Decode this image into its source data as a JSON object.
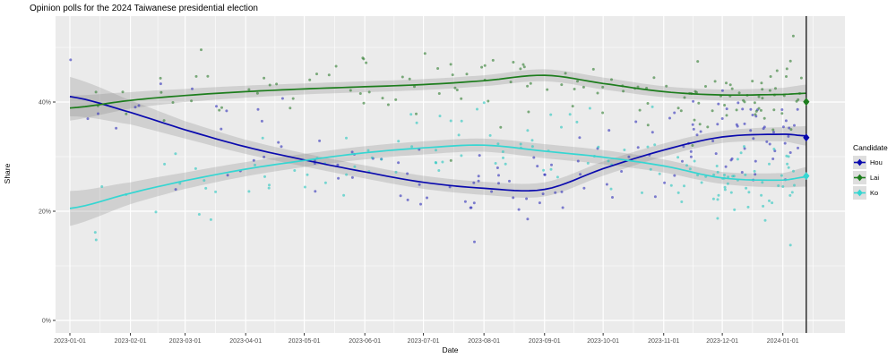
{
  "title": "Opinion polls for the 2024 Taiwanese presidential election",
  "axes": {
    "xlabel": "Date",
    "ylabel": "Share",
    "x_tick_labels": [
      "2023-01-01",
      "2023-02-01",
      "2023-03-01",
      "2023-04-01",
      "2023-05-01",
      "2023-06-01",
      "2023-07-01",
      "2023-08-01",
      "2023-09-01",
      "2023-10-01",
      "2023-11-01",
      "2023-12-01",
      "2024-01-01"
    ],
    "y_tick_labels": [
      "0%",
      "20%",
      "40%"
    ]
  },
  "legend": {
    "title": "Candidate",
    "items": [
      {
        "label": "Hou"
      },
      {
        "label": "Lai"
      },
      {
        "label": "Ko"
      }
    ]
  },
  "chart_data": {
    "type": "scatter",
    "title": "Opinion polls for the 2024 Taiwanese presidential election",
    "xlabel": "Date",
    "ylabel": "Share",
    "grid": true,
    "legend_position": "right",
    "panel_background": "#EBEBEB",
    "gridline_color": "#FFFFFF",
    "tick_color": "#333333",
    "x_tick_days": [
      0,
      31,
      59,
      90,
      120,
      151,
      181,
      212,
      243,
      273,
      304,
      334,
      365
    ],
    "x_tick_labels": [
      "2023-01-01",
      "2023-02-01",
      "2023-03-01",
      "2023-04-01",
      "2023-05-01",
      "2023-06-01",
      "2023-07-01",
      "2023-08-01",
      "2023-09-01",
      "2023-10-01",
      "2023-11-01",
      "2023-12-01",
      "2024-01-01"
    ],
    "x_day_range": [
      -7.3,
      396.8
    ],
    "ylim": [
      -2.3,
      55.7
    ],
    "y_major_ticks": [
      0,
      20,
      40
    ],
    "y_major_labels": [
      "0%",
      "20%",
      "40%"
    ],
    "y_minor_ticks": [
      10,
      30,
      50
    ],
    "election_day_line": {
      "day": 377,
      "color": "#111111"
    },
    "control_days": [
      0,
      31,
      59,
      90,
      120,
      151,
      181,
      212,
      243,
      273,
      304,
      334,
      365,
      377
    ],
    "series": [
      {
        "name": "Hou",
        "line_color": "#0A0AAE",
        "point_color": "#3535BB",
        "trend_pct": [
          41.0,
          38.1,
          34.9,
          31.8,
          29.4,
          27.2,
          25.3,
          24.2,
          24.0,
          27.8,
          31.2,
          33.6,
          34.1,
          33.8
        ],
        "ci_halfwidth_pct": [
          3.6,
          2.2,
          1.6,
          1.3,
          1.2,
          1.2,
          1.2,
          1.2,
          1.3,
          1.3,
          1.2,
          1.1,
          1.3,
          1.8
        ],
        "election_result_pct": 33.49,
        "noise_sd": 3.4
      },
      {
        "name": "Lai",
        "line_color": "#1D7D1D",
        "point_color": "#338033",
        "trend_pct": [
          38.9,
          40.3,
          41.2,
          41.9,
          42.4,
          42.8,
          43.2,
          43.9,
          44.9,
          43.4,
          41.9,
          41.3,
          41.4,
          41.6
        ],
        "ci_halfwidth_pct": [
          2.3,
          1.5,
          1.2,
          1.1,
          1.0,
          1.0,
          1.0,
          1.0,
          1.1,
          1.1,
          1.0,
          1.0,
          1.2,
          1.6
        ],
        "election_result_pct": 40.05,
        "noise_sd": 3.0
      },
      {
        "name": "Ko",
        "line_color": "#35D6D2",
        "point_color": "#2CC8C0",
        "trend_pct": [
          20.5,
          23.3,
          25.6,
          27.7,
          29.3,
          30.7,
          31.6,
          32.1,
          31.0,
          29.9,
          28.3,
          26.1,
          25.7,
          26.3
        ],
        "ci_halfwidth_pct": [
          3.2,
          2.0,
          1.5,
          1.3,
          1.2,
          1.2,
          1.2,
          1.2,
          1.3,
          1.3,
          1.2,
          1.1,
          1.3,
          1.8
        ],
        "election_result_pct": 26.46,
        "noise_sd": 3.6
      }
    ],
    "ci_band": {
      "color": "#7F7F7F",
      "opacity": 0.25
    },
    "scatter_model": {
      "seed": 7,
      "month_boundaries_days": [
        0,
        31,
        59,
        90,
        120,
        151,
        181,
        212,
        243,
        273,
        304,
        334,
        365,
        375
      ],
      "polls_per_month_per_candidate": [
        4,
        4,
        6,
        7,
        9,
        9,
        11,
        13,
        11,
        10,
        18,
        30,
        10
      ],
      "point_radius": 1.5,
      "point_opacity": 0.62,
      "outlier_prob": 0.07,
      "outlier_scale": 1.9,
      "value_clamp_pct": [
        13.5,
        53.5
      ]
    }
  }
}
